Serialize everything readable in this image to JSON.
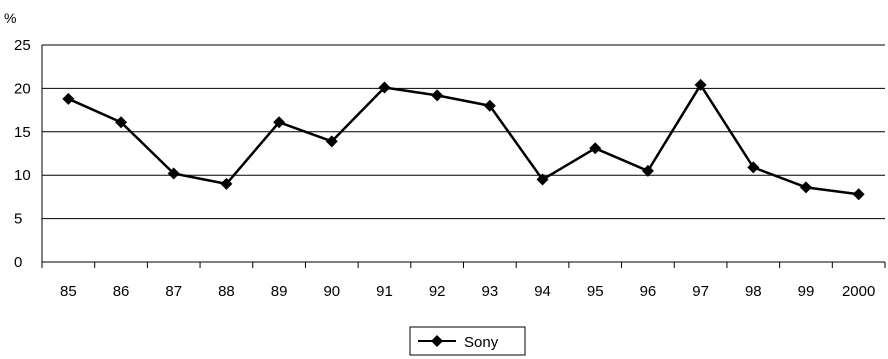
{
  "chart_data": {
    "type": "line",
    "unit_label": "%",
    "categories": [
      "85",
      "86",
      "87",
      "88",
      "89",
      "90",
      "91",
      "92",
      "93",
      "94",
      "95",
      "96",
      "97",
      "98",
      "99",
      "2000"
    ],
    "series": [
      {
        "name": "Sony",
        "values": [
          18.8,
          16.1,
          10.2,
          9.0,
          16.1,
          13.9,
          20.1,
          19.2,
          18.0,
          9.5,
          13.1,
          10.5,
          20.4,
          10.9,
          8.6,
          7.8
        ],
        "color": "#000000",
        "marker": "diamond"
      }
    ],
    "y_ticks": [
      0,
      5,
      10,
      15,
      20,
      25
    ],
    "ylim": [
      0,
      25
    ],
    "grid": true,
    "legend_position": "bottom-center"
  }
}
